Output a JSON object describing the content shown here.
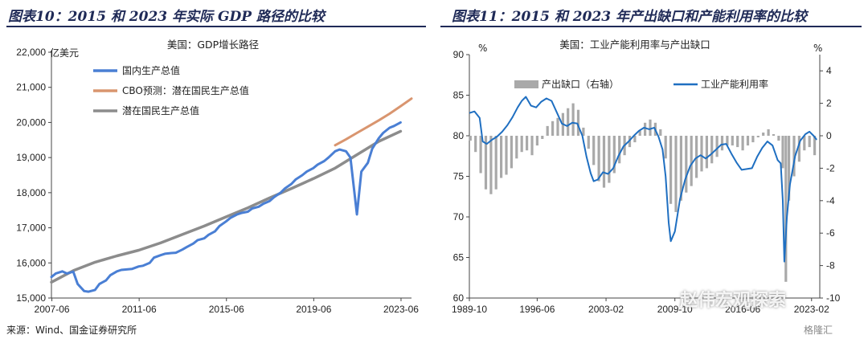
{
  "header": {
    "left_title": "图表10：2015 和 2023 年实际 GDP 路径的比较",
    "right_title": "图表11：2015 和 2023 年产出缺口和产能利用率的比较"
  },
  "source": "来源：Wind、国金证券研究所",
  "watermark": "赵伟宏观探索",
  "corner_logo": "格隆汇",
  "chart_data": [
    {
      "type": "line",
      "title": "美国：GDP增长路径",
      "ylabel": "亿美元",
      "ylim": [
        15000,
        22000
      ],
      "yticks": [
        15000,
        16000,
        17000,
        18000,
        19000,
        20000,
        21000,
        22000
      ],
      "ytick_labels": [
        "15,000",
        "16,000",
        "17,000",
        "18,000",
        "19,000",
        "20,000",
        "21,000",
        "22,000"
      ],
      "xlim": [
        2007.4,
        2023.9
      ],
      "xticks": [
        2007.42,
        2011.42,
        2015.42,
        2019.42,
        2023.42
      ],
      "xtick_labels": [
        "2007-06",
        "2011-06",
        "2015-06",
        "2019-06",
        "2023-06"
      ],
      "legend_position": "top-left",
      "colors": {
        "gdp": "#4a7fd4",
        "cbo": "#d9956f",
        "potential": "#8c8c8c"
      },
      "series": [
        {
          "name": "国内生产总值",
          "color": "#4a7fd4",
          "width": 3,
          "x": [
            2007.4,
            2007.6,
            2007.9,
            2008.1,
            2008.4,
            2008.6,
            2008.9,
            2009.1,
            2009.4,
            2009.6,
            2009.9,
            2010.1,
            2010.4,
            2010.6,
            2010.9,
            2011.1,
            2011.4,
            2011.6,
            2011.9,
            2012.1,
            2012.4,
            2012.6,
            2012.9,
            2013.1,
            2013.4,
            2013.6,
            2013.9,
            2014.1,
            2014.4,
            2014.6,
            2014.9,
            2015.1,
            2015.4,
            2015.6,
            2015.9,
            2016.1,
            2016.4,
            2016.6,
            2016.9,
            2017.1,
            2017.4,
            2017.6,
            2017.9,
            2018.1,
            2018.4,
            2018.6,
            2018.9,
            2019.1,
            2019.4,
            2019.6,
            2019.9,
            2020.1,
            2020.4,
            2020.6,
            2020.9,
            2021.1,
            2021.4,
            2021.6,
            2021.9,
            2022.1,
            2022.4,
            2022.6,
            2022.9,
            2023.1,
            2023.4
          ],
          "y": [
            15600,
            15700,
            15760,
            15700,
            15750,
            15400,
            15200,
            15180,
            15230,
            15400,
            15500,
            15650,
            15760,
            15800,
            15820,
            15830,
            15900,
            15920,
            16000,
            16150,
            16220,
            16260,
            16280,
            16290,
            16380,
            16450,
            16550,
            16650,
            16700,
            16800,
            16900,
            17050,
            17180,
            17280,
            17380,
            17420,
            17460,
            17550,
            17600,
            17680,
            17760,
            17870,
            18000,
            18120,
            18250,
            18380,
            18500,
            18600,
            18700,
            18800,
            18900,
            19000,
            19180,
            19230,
            19180,
            19000,
            17380,
            18600,
            18850,
            19250,
            19550,
            19700,
            19850,
            19900,
            20000
          ]
        },
        {
          "name": "CBO预测：潜在国民生产总值",
          "color": "#d9956f",
          "width": 3,
          "x": [
            2020.4,
            2020.9,
            2021.4,
            2021.9,
            2022.4,
            2022.9,
            2023.4,
            2023.9
          ],
          "y": [
            19350,
            19520,
            19700,
            19880,
            20060,
            20250,
            20460,
            20680
          ]
        },
        {
          "name": "潜在国民生产总值",
          "color": "#8c8c8c",
          "width": 3.5,
          "x": [
            2007.4,
            2008.4,
            2009.4,
            2010.4,
            2011.4,
            2012.4,
            2013.4,
            2014.4,
            2015.4,
            2016.4,
            2017.4,
            2018.4,
            2019.4,
            2020.4,
            2021.4,
            2022.4,
            2023.4
          ],
          "y": [
            15450,
            15780,
            16020,
            16200,
            16360,
            16570,
            16810,
            17050,
            17310,
            17570,
            17850,
            18120,
            18400,
            18700,
            19080,
            19460,
            19750
          ]
        }
      ]
    },
    {
      "type": "bar+line",
      "title": "美国：工业产能利用率与产出缺口",
      "y_left_label": "%",
      "y_right_label": "%",
      "ylim_left": [
        60,
        90
      ],
      "yticks_left": [
        60,
        65,
        70,
        75,
        80,
        85,
        90
      ],
      "ylim_right": [
        -10,
        5
      ],
      "yticks_right": [
        -10,
        -8,
        -6,
        -4,
        -2,
        0,
        2,
        4
      ],
      "xlim": [
        1989.8,
        2023.9
      ],
      "xticks": [
        1989.8,
        1996.4,
        2003.1,
        2009.8,
        2016.4,
        2023.1
      ],
      "xtick_labels": [
        "1989-10",
        "1996-06",
        "2003-02",
        "2009-10",
        "2016-06",
        "2023-02"
      ],
      "legend_position": "top",
      "colors": {
        "bars": "#a9a9a9",
        "line": "#1f6fc1"
      },
      "bars": {
        "name": "产出缺口（右轴）",
        "axis": "right",
        "x": [
          1989.9,
          1990.4,
          1990.9,
          1991.4,
          1991.9,
          1992.4,
          1992.9,
          1993.4,
          1993.9,
          1994.4,
          1994.9,
          1995.4,
          1995.9,
          1996.4,
          1996.9,
          1997.4,
          1997.9,
          1998.4,
          1998.9,
          1999.4,
          1999.9,
          2000.4,
          2000.9,
          2001.4,
          2001.9,
          2002.4,
          2002.9,
          2003.4,
          2003.9,
          2004.4,
          2004.9,
          2005.4,
          2005.9,
          2006.4,
          2006.9,
          2007.4,
          2007.9,
          2008.4,
          2008.9,
          2009.4,
          2009.9,
          2010.4,
          2010.9,
          2011.4,
          2011.9,
          2012.4,
          2012.9,
          2013.4,
          2013.9,
          2014.4,
          2014.9,
          2015.4,
          2015.9,
          2016.4,
          2016.9,
          2017.4,
          2017.9,
          2018.4,
          2018.9,
          2019.4,
          2019.9,
          2020.3,
          2020.6,
          2020.9,
          2021.4,
          2021.9,
          2022.4,
          2022.9,
          2023.4
        ],
        "values": [
          -0.3,
          -1.0,
          -2.3,
          -3.3,
          -3.6,
          -3.3,
          -2.6,
          -2.4,
          -2.0,
          -1.4,
          -1.0,
          -0.9,
          -1.2,
          -0.6,
          -0.2,
          0.6,
          0.9,
          1.1,
          1.4,
          1.7,
          2.0,
          1.6,
          0.5,
          -0.8,
          -1.8,
          -2.8,
          -3.2,
          -2.9,
          -2.3,
          -1.7,
          -1.2,
          -0.7,
          -0.4,
          0.3,
          0.8,
          1.0,
          0.8,
          0.4,
          -1.4,
          -4.2,
          -4.7,
          -4.0,
          -3.5,
          -3.1,
          -2.6,
          -2.2,
          -2.0,
          -1.7,
          -1.3,
          -0.9,
          -0.6,
          -0.6,
          -0.7,
          -0.9,
          -0.6,
          -0.4,
          -0.1,
          0.2,
          0.4,
          0.1,
          -0.3,
          -2.0,
          -9.0,
          -4.0,
          -2.5,
          -1.6,
          -0.9,
          -0.7,
          -1.2
        ]
      },
      "line": {
        "name": "工业产能利用率",
        "axis": "left",
        "x": [
          1989.8,
          1990.3,
          1990.8,
          1991.1,
          1991.5,
          1992.0,
          1992.5,
          1993.0,
          1993.5,
          1994.0,
          1994.5,
          1994.9,
          1995.3,
          1995.8,
          1996.3,
          1996.8,
          1997.3,
          1997.8,
          1998.3,
          1998.8,
          1999.3,
          1999.8,
          2000.3,
          2000.8,
          2001.2,
          2001.6,
          2001.9,
          2002.3,
          2002.8,
          2003.3,
          2003.8,
          2004.3,
          2004.8,
          2005.3,
          2005.8,
          2006.3,
          2006.8,
          2007.3,
          2007.8,
          2008.2,
          2008.6,
          2008.9,
          2009.2,
          2009.4,
          2009.8,
          2010.3,
          2010.8,
          2011.3,
          2011.8,
          2012.3,
          2012.8,
          2013.3,
          2013.8,
          2014.3,
          2014.8,
          2015.3,
          2015.8,
          2016.3,
          2016.8,
          2017.3,
          2017.8,
          2018.3,
          2018.8,
          2019.3,
          2019.8,
          2020.1,
          2020.3,
          2020.45,
          2020.7,
          2021.0,
          2021.5,
          2022.0,
          2022.5,
          2022.9,
          2023.3,
          2023.6
        ],
        "y": [
          82.8,
          83.0,
          82.2,
          79.3,
          79.0,
          79.5,
          79.9,
          80.5,
          81.3,
          82.3,
          83.5,
          84.3,
          84.8,
          83.7,
          83.5,
          84.2,
          84.6,
          84.3,
          82.9,
          81.5,
          81.2,
          81.6,
          81.5,
          80.0,
          77.4,
          75.4,
          74.4,
          74.6,
          75.5,
          75.3,
          76.0,
          77.5,
          78.7,
          79.3,
          80.0,
          80.6,
          81.0,
          80.8,
          81.0,
          79.9,
          78.3,
          75.0,
          69.3,
          67.0,
          68.2,
          72.2,
          74.6,
          76.3,
          77.2,
          77.6,
          77.2,
          77.7,
          78.3,
          78.9,
          79.0,
          77.8,
          76.7,
          75.8,
          75.9,
          76.0,
          77.4,
          78.5,
          79.3,
          78.8,
          77.0,
          76.6,
          72.0,
          64.5,
          70.0,
          74.0,
          77.5,
          79.4,
          80.2,
          80.5,
          80.0,
          79.5
        ]
      }
    }
  ]
}
